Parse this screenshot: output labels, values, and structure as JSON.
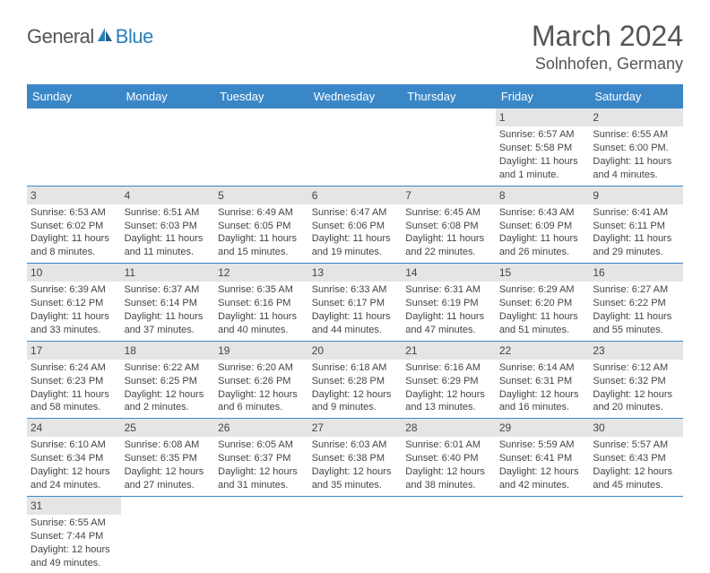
{
  "logo": {
    "general": "General",
    "blue": "Blue"
  },
  "title": "March 2024",
  "location": "Solnhofen, Germany",
  "colors": {
    "header_bg": "#3a87c8",
    "header_fg": "#ffffff",
    "daynum_bg": "#e5e5e5",
    "rule": "#3a87c8",
    "logo_blue": "#2a7fba",
    "text": "#444"
  },
  "weekdays": [
    "Sunday",
    "Monday",
    "Tuesday",
    "Wednesday",
    "Thursday",
    "Friday",
    "Saturday"
  ],
  "weeks": [
    [
      null,
      null,
      null,
      null,
      null,
      {
        "n": "1",
        "sunrise": "Sunrise: 6:57 AM",
        "sunset": "Sunset: 5:58 PM",
        "daylight": "Daylight: 11 hours and 1 minute."
      },
      {
        "n": "2",
        "sunrise": "Sunrise: 6:55 AM",
        "sunset": "Sunset: 6:00 PM.",
        "daylight": "Daylight: 11 hours and 4 minutes."
      }
    ],
    [
      {
        "n": "3",
        "sunrise": "Sunrise: 6:53 AM",
        "sunset": "Sunset: 6:02 PM",
        "daylight": "Daylight: 11 hours and 8 minutes."
      },
      {
        "n": "4",
        "sunrise": "Sunrise: 6:51 AM",
        "sunset": "Sunset: 6:03 PM",
        "daylight": "Daylight: 11 hours and 11 minutes."
      },
      {
        "n": "5",
        "sunrise": "Sunrise: 6:49 AM",
        "sunset": "Sunset: 6:05 PM",
        "daylight": "Daylight: 11 hours and 15 minutes."
      },
      {
        "n": "6",
        "sunrise": "Sunrise: 6:47 AM",
        "sunset": "Sunset: 6:06 PM",
        "daylight": "Daylight: 11 hours and 19 minutes."
      },
      {
        "n": "7",
        "sunrise": "Sunrise: 6:45 AM",
        "sunset": "Sunset: 6:08 PM",
        "daylight": "Daylight: 11 hours and 22 minutes."
      },
      {
        "n": "8",
        "sunrise": "Sunrise: 6:43 AM",
        "sunset": "Sunset: 6:09 PM",
        "daylight": "Daylight: 11 hours and 26 minutes."
      },
      {
        "n": "9",
        "sunrise": "Sunrise: 6:41 AM",
        "sunset": "Sunset: 6:11 PM",
        "daylight": "Daylight: 11 hours and 29 minutes."
      }
    ],
    [
      {
        "n": "10",
        "sunrise": "Sunrise: 6:39 AM",
        "sunset": "Sunset: 6:12 PM",
        "daylight": "Daylight: 11 hours and 33 minutes."
      },
      {
        "n": "11",
        "sunrise": "Sunrise: 6:37 AM",
        "sunset": "Sunset: 6:14 PM",
        "daylight": "Daylight: 11 hours and 37 minutes."
      },
      {
        "n": "12",
        "sunrise": "Sunrise: 6:35 AM",
        "sunset": "Sunset: 6:16 PM",
        "daylight": "Daylight: 11 hours and 40 minutes."
      },
      {
        "n": "13",
        "sunrise": "Sunrise: 6:33 AM",
        "sunset": "Sunset: 6:17 PM",
        "daylight": "Daylight: 11 hours and 44 minutes."
      },
      {
        "n": "14",
        "sunrise": "Sunrise: 6:31 AM",
        "sunset": "Sunset: 6:19 PM",
        "daylight": "Daylight: 11 hours and 47 minutes."
      },
      {
        "n": "15",
        "sunrise": "Sunrise: 6:29 AM",
        "sunset": "Sunset: 6:20 PM",
        "daylight": "Daylight: 11 hours and 51 minutes."
      },
      {
        "n": "16",
        "sunrise": "Sunrise: 6:27 AM",
        "sunset": "Sunset: 6:22 PM",
        "daylight": "Daylight: 11 hours and 55 minutes."
      }
    ],
    [
      {
        "n": "17",
        "sunrise": "Sunrise: 6:24 AM",
        "sunset": "Sunset: 6:23 PM",
        "daylight": "Daylight: 11 hours and 58 minutes."
      },
      {
        "n": "18",
        "sunrise": "Sunrise: 6:22 AM",
        "sunset": "Sunset: 6:25 PM",
        "daylight": "Daylight: 12 hours and 2 minutes."
      },
      {
        "n": "19",
        "sunrise": "Sunrise: 6:20 AM",
        "sunset": "Sunset: 6:26 PM",
        "daylight": "Daylight: 12 hours and 6 minutes."
      },
      {
        "n": "20",
        "sunrise": "Sunrise: 6:18 AM",
        "sunset": "Sunset: 6:28 PM",
        "daylight": "Daylight: 12 hours and 9 minutes."
      },
      {
        "n": "21",
        "sunrise": "Sunrise: 6:16 AM",
        "sunset": "Sunset: 6:29 PM",
        "daylight": "Daylight: 12 hours and 13 minutes."
      },
      {
        "n": "22",
        "sunrise": "Sunrise: 6:14 AM",
        "sunset": "Sunset: 6:31 PM",
        "daylight": "Daylight: 12 hours and 16 minutes."
      },
      {
        "n": "23",
        "sunrise": "Sunrise: 6:12 AM",
        "sunset": "Sunset: 6:32 PM",
        "daylight": "Daylight: 12 hours and 20 minutes."
      }
    ],
    [
      {
        "n": "24",
        "sunrise": "Sunrise: 6:10 AM",
        "sunset": "Sunset: 6:34 PM",
        "daylight": "Daylight: 12 hours and 24 minutes."
      },
      {
        "n": "25",
        "sunrise": "Sunrise: 6:08 AM",
        "sunset": "Sunset: 6:35 PM",
        "daylight": "Daylight: 12 hours and 27 minutes."
      },
      {
        "n": "26",
        "sunrise": "Sunrise: 6:05 AM",
        "sunset": "Sunset: 6:37 PM",
        "daylight": "Daylight: 12 hours and 31 minutes."
      },
      {
        "n": "27",
        "sunrise": "Sunrise: 6:03 AM",
        "sunset": "Sunset: 6:38 PM",
        "daylight": "Daylight: 12 hours and 35 minutes."
      },
      {
        "n": "28",
        "sunrise": "Sunrise: 6:01 AM",
        "sunset": "Sunset: 6:40 PM",
        "daylight": "Daylight: 12 hours and 38 minutes."
      },
      {
        "n": "29",
        "sunrise": "Sunrise: 5:59 AM",
        "sunset": "Sunset: 6:41 PM",
        "daylight": "Daylight: 12 hours and 42 minutes."
      },
      {
        "n": "30",
        "sunrise": "Sunrise: 5:57 AM",
        "sunset": "Sunset: 6:43 PM",
        "daylight": "Daylight: 12 hours and 45 minutes."
      }
    ],
    [
      {
        "n": "31",
        "sunrise": "Sunrise: 6:55 AM",
        "sunset": "Sunset: 7:44 PM",
        "daylight": "Daylight: 12 hours and 49 minutes."
      },
      null,
      null,
      null,
      null,
      null,
      null
    ]
  ]
}
